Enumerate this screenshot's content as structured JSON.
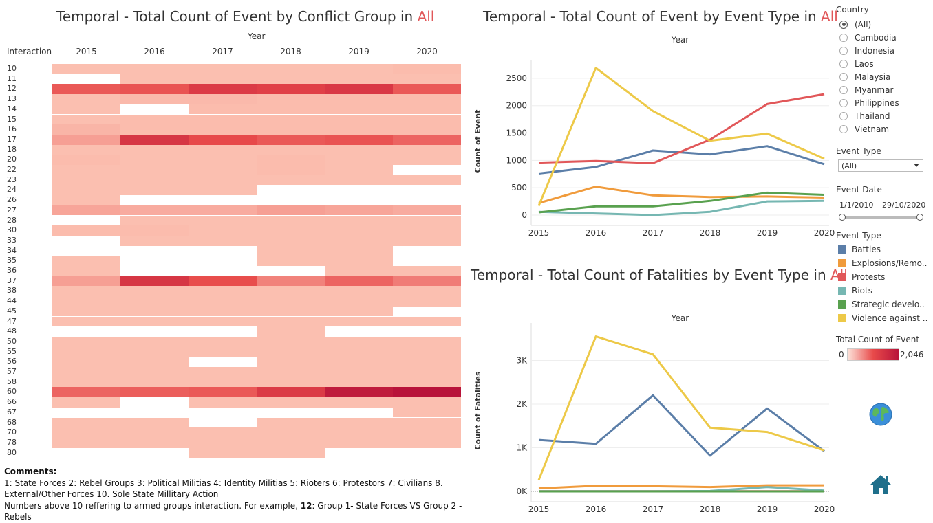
{
  "heatmap": {
    "title_prefix": "Temporal - Total Count of Event by Conflict Group in ",
    "title_highlight": "All",
    "year_header": "Year",
    "row_header": "Interaction",
    "years": [
      "2015",
      "2016",
      "2017",
      "2018",
      "2019",
      "2020"
    ],
    "rows": [
      "10",
      "11",
      "12",
      "13",
      "14",
      "15",
      "16",
      "17",
      "18",
      "20",
      "22",
      "23",
      "24",
      "26",
      "27",
      "28",
      "30",
      "33",
      "34",
      "35",
      "36",
      "37",
      "38",
      "44",
      "45",
      "47",
      "48",
      "50",
      "55",
      "56",
      "57",
      "58",
      "60",
      "66",
      "67",
      "68",
      "70",
      "78",
      "80"
    ],
    "values": [
      [
        40,
        40,
        40,
        40,
        40,
        60
      ],
      [
        0,
        40,
        40,
        40,
        40,
        40
      ],
      [
        900,
        950,
        1300,
        1200,
        1350,
        900
      ],
      [
        40,
        80,
        80,
        60,
        60,
        60
      ],
      [
        40,
        0,
        60,
        60,
        60,
        60
      ],
      [
        40,
        60,
        60,
        60,
        60,
        60
      ],
      [
        120,
        60,
        60,
        60,
        60,
        60
      ],
      [
        300,
        1400,
        1050,
        900,
        950,
        800
      ],
      [
        40,
        40,
        40,
        40,
        40,
        40
      ],
      [
        60,
        40,
        40,
        60,
        40,
        40
      ],
      [
        40,
        40,
        40,
        60,
        40,
        0
      ],
      [
        40,
        40,
        40,
        40,
        40,
        40
      ],
      [
        40,
        40,
        40,
        0,
        0,
        0
      ],
      [
        40,
        0,
        0,
        0,
        0,
        0
      ],
      [
        250,
        200,
        200,
        300,
        250,
        200
      ],
      [
        0,
        40,
        40,
        40,
        40,
        40
      ],
      [
        60,
        60,
        40,
        40,
        40,
        40
      ],
      [
        0,
        40,
        40,
        40,
        40,
        40
      ],
      [
        0,
        0,
        0,
        40,
        40,
        0
      ],
      [
        40,
        0,
        0,
        40,
        40,
        0
      ],
      [
        40,
        0,
        0,
        0,
        40,
        40
      ],
      [
        300,
        1400,
        1000,
        550,
        800,
        600
      ],
      [
        40,
        40,
        40,
        40,
        40,
        40
      ],
      [
        40,
        40,
        40,
        40,
        40,
        40
      ],
      [
        40,
        40,
        40,
        40,
        40,
        0
      ],
      [
        40,
        40,
        40,
        40,
        40,
        40
      ],
      [
        0,
        0,
        0,
        40,
        0,
        0
      ],
      [
        40,
        40,
        40,
        40,
        40,
        40
      ],
      [
        40,
        40,
        40,
        40,
        40,
        40
      ],
      [
        40,
        40,
        0,
        40,
        40,
        40
      ],
      [
        40,
        40,
        40,
        40,
        40,
        40
      ],
      [
        40,
        40,
        40,
        40,
        40,
        40
      ],
      [
        800,
        850,
        900,
        1300,
        1900,
        2046
      ],
      [
        40,
        0,
        40,
        40,
        40,
        40
      ],
      [
        0,
        0,
        0,
        0,
        0,
        40
      ],
      [
        40,
        40,
        0,
        40,
        40,
        40
      ],
      [
        40,
        40,
        40,
        40,
        40,
        40
      ],
      [
        40,
        40,
        40,
        40,
        40,
        40
      ],
      [
        0,
        0,
        40,
        40,
        0,
        0
      ]
    ]
  },
  "chart_data": [
    {
      "type": "line",
      "title_prefix": "Temporal - Total Count of Event by Event Type  in ",
      "title_highlight": "All",
      "xlabel": "Year",
      "ylabel": "Count of Event",
      "x": [
        "2015",
        "2016",
        "2017",
        "2018",
        "2019",
        "2020"
      ],
      "yticks": [
        "0",
        "500",
        "1000",
        "1500",
        "2000",
        "2500"
      ],
      "ylim": [
        0,
        2700
      ],
      "series": [
        {
          "name": "Battles",
          "color": "#5b7ea8",
          "values": [
            760,
            880,
            1180,
            1110,
            1260,
            930
          ]
        },
        {
          "name": "Explosions/Remote violence",
          "color": "#f09b3c",
          "values": [
            220,
            520,
            360,
            330,
            340,
            320
          ]
        },
        {
          "name": "Protests",
          "color": "#e15759",
          "values": [
            960,
            990,
            950,
            1380,
            2030,
            2210
          ]
        },
        {
          "name": "Riots",
          "color": "#76b7b2",
          "values": [
            60,
            30,
            0,
            60,
            250,
            260
          ]
        },
        {
          "name": "Strategic developments",
          "color": "#59a14f",
          "values": [
            50,
            160,
            160,
            260,
            410,
            370
          ]
        },
        {
          "name": "Violence against civilians",
          "color": "#edc948",
          "values": [
            170,
            2690,
            1900,
            1360,
            1490,
            1030
          ]
        }
      ]
    },
    {
      "type": "line",
      "title_prefix": "Temporal - Total Count of Fatalities by Event Type  in ",
      "title_highlight": "All",
      "xlabel": "Year",
      "ylabel": "Count of Fatalities",
      "x": [
        "2015",
        "2016",
        "2017",
        "2018",
        "2019",
        "2020"
      ],
      "yticks": [
        "0K",
        "1K",
        "2K",
        "3K"
      ],
      "ylim": [
        0,
        3700
      ],
      "series": [
        {
          "name": "Battles",
          "color": "#5b7ea8",
          "values": [
            1180,
            1090,
            2200,
            820,
            1900,
            920
          ]
        },
        {
          "name": "Explosions/Remote violence",
          "color": "#f09b3c",
          "values": [
            70,
            130,
            120,
            100,
            140,
            140
          ]
        },
        {
          "name": "Protests",
          "color": "#e15759",
          "values": [
            5,
            5,
            5,
            5,
            5,
            5
          ]
        },
        {
          "name": "Riots",
          "color": "#76b7b2",
          "values": [
            5,
            5,
            5,
            10,
            100,
            20
          ]
        },
        {
          "name": "Strategic developments",
          "color": "#59a14f",
          "values": [
            0,
            0,
            0,
            0,
            0,
            0
          ]
        },
        {
          "name": "Violence against civilians",
          "color": "#edc948",
          "values": [
            260,
            3550,
            3140,
            1460,
            1360,
            940
          ]
        }
      ]
    }
  ],
  "filters": {
    "country_label": "Country",
    "countries": [
      "(All)",
      "Cambodia",
      "Indonesia",
      "Laos",
      "Malaysia",
      "Myanmar",
      "Philippines",
      "Thailand",
      "Vietnam"
    ],
    "selected_country": "(All)",
    "event_type_label": "Event Type",
    "event_type_value": "(All)",
    "event_date_label": "Event Date",
    "date_start": "1/1/2010",
    "date_end": "29/10/2020"
  },
  "legend": {
    "title": "Event Type",
    "items": [
      {
        "label": "Battles",
        "color": "#5b7ea8"
      },
      {
        "label": "Explosions/Remo..",
        "color": "#f09b3c"
      },
      {
        "label": "Protests",
        "color": "#e15759"
      },
      {
        "label": "Riots",
        "color": "#76b7b2"
      },
      {
        "label": "Strategic develo..",
        "color": "#59a14f"
      },
      {
        "label": "Violence against ..",
        "color": "#edc948"
      }
    ],
    "color_scale_title": "Total Count of Event",
    "scale_min": "0",
    "scale_max": "2,046"
  },
  "comments": {
    "heading": "Comments:",
    "line1": "1: State Forces 2: Rebel Groups 3: Political Militias 4: Identity Militias 5: Rioters 6: Protestors 7: Civilians 8. External/Other Forces 10. Sole State Millitary Action",
    "line2_prefix": "Numbers above 10 reffering to armed groups interaction. For example,  ",
    "line2_bold": "12",
    "line2_suffix": ": Group 1- State Forces VS Group  2 - Rebels"
  },
  "icons": {
    "globe": "globe-icon",
    "home": "home-icon"
  }
}
